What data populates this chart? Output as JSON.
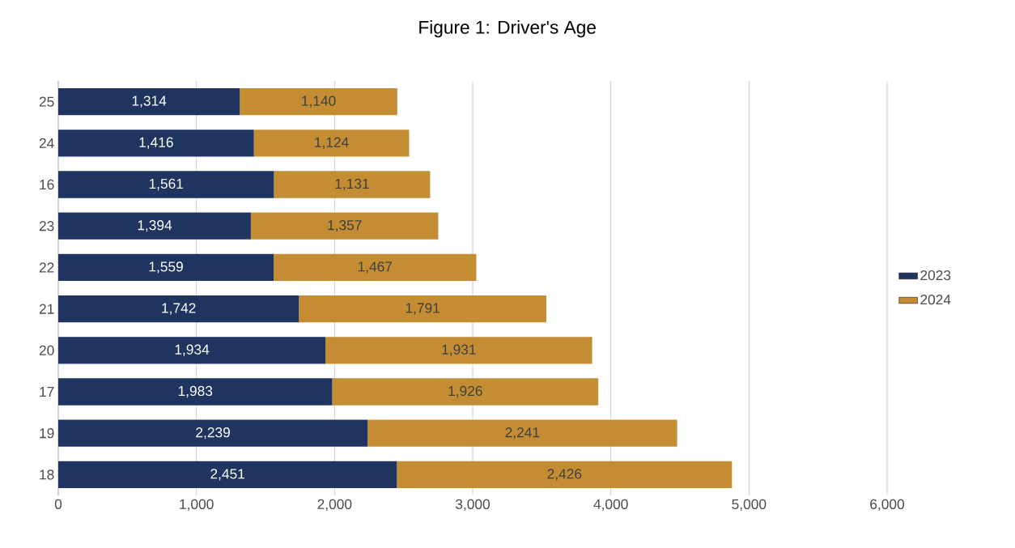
{
  "chart_data": {
    "type": "bar",
    "orientation": "horizontal",
    "stacked": true,
    "title": "Figure 1: Driver's Age",
    "categories": [
      "25",
      "24",
      "16",
      "23",
      "22",
      "21",
      "20",
      "17",
      "19",
      "18"
    ],
    "series": [
      {
        "name": "2023",
        "color": "#1f3560",
        "values": [
          1314,
          1416,
          1561,
          1394,
          1559,
          1742,
          1934,
          1983,
          2239,
          2451
        ],
        "value_labels": [
          "1,314",
          "1,416",
          "1,561",
          "1,394",
          "1,559",
          "1,742",
          "1,934",
          "1,983",
          "2,239",
          "2,451"
        ]
      },
      {
        "name": "2024",
        "color": "#c48d33",
        "values": [
          1140,
          1124,
          1131,
          1357,
          1467,
          1791,
          1931,
          1926,
          2241,
          2426
        ],
        "value_labels": [
          "1,140",
          "1,124",
          "1,131",
          "1,357",
          "1,467",
          "1,791",
          "1,931",
          "1,926",
          "2,241",
          "2,426"
        ]
      }
    ],
    "xlim": [
      0,
      6000
    ],
    "xticks": [
      0,
      {
        "value": 1000,
        "label": "1,000"
      },
      {
        "value": 2000,
        "label": "2,000"
      },
      {
        "value": 3000,
        "label": "3,000"
      },
      {
        "value": 4000,
        "label": "4,000"
      },
      {
        "value": 5000,
        "label": "5,000"
      },
      {
        "value": 6000,
        "label": "6,000"
      }
    ],
    "grid": "x",
    "legend": "right"
  }
}
